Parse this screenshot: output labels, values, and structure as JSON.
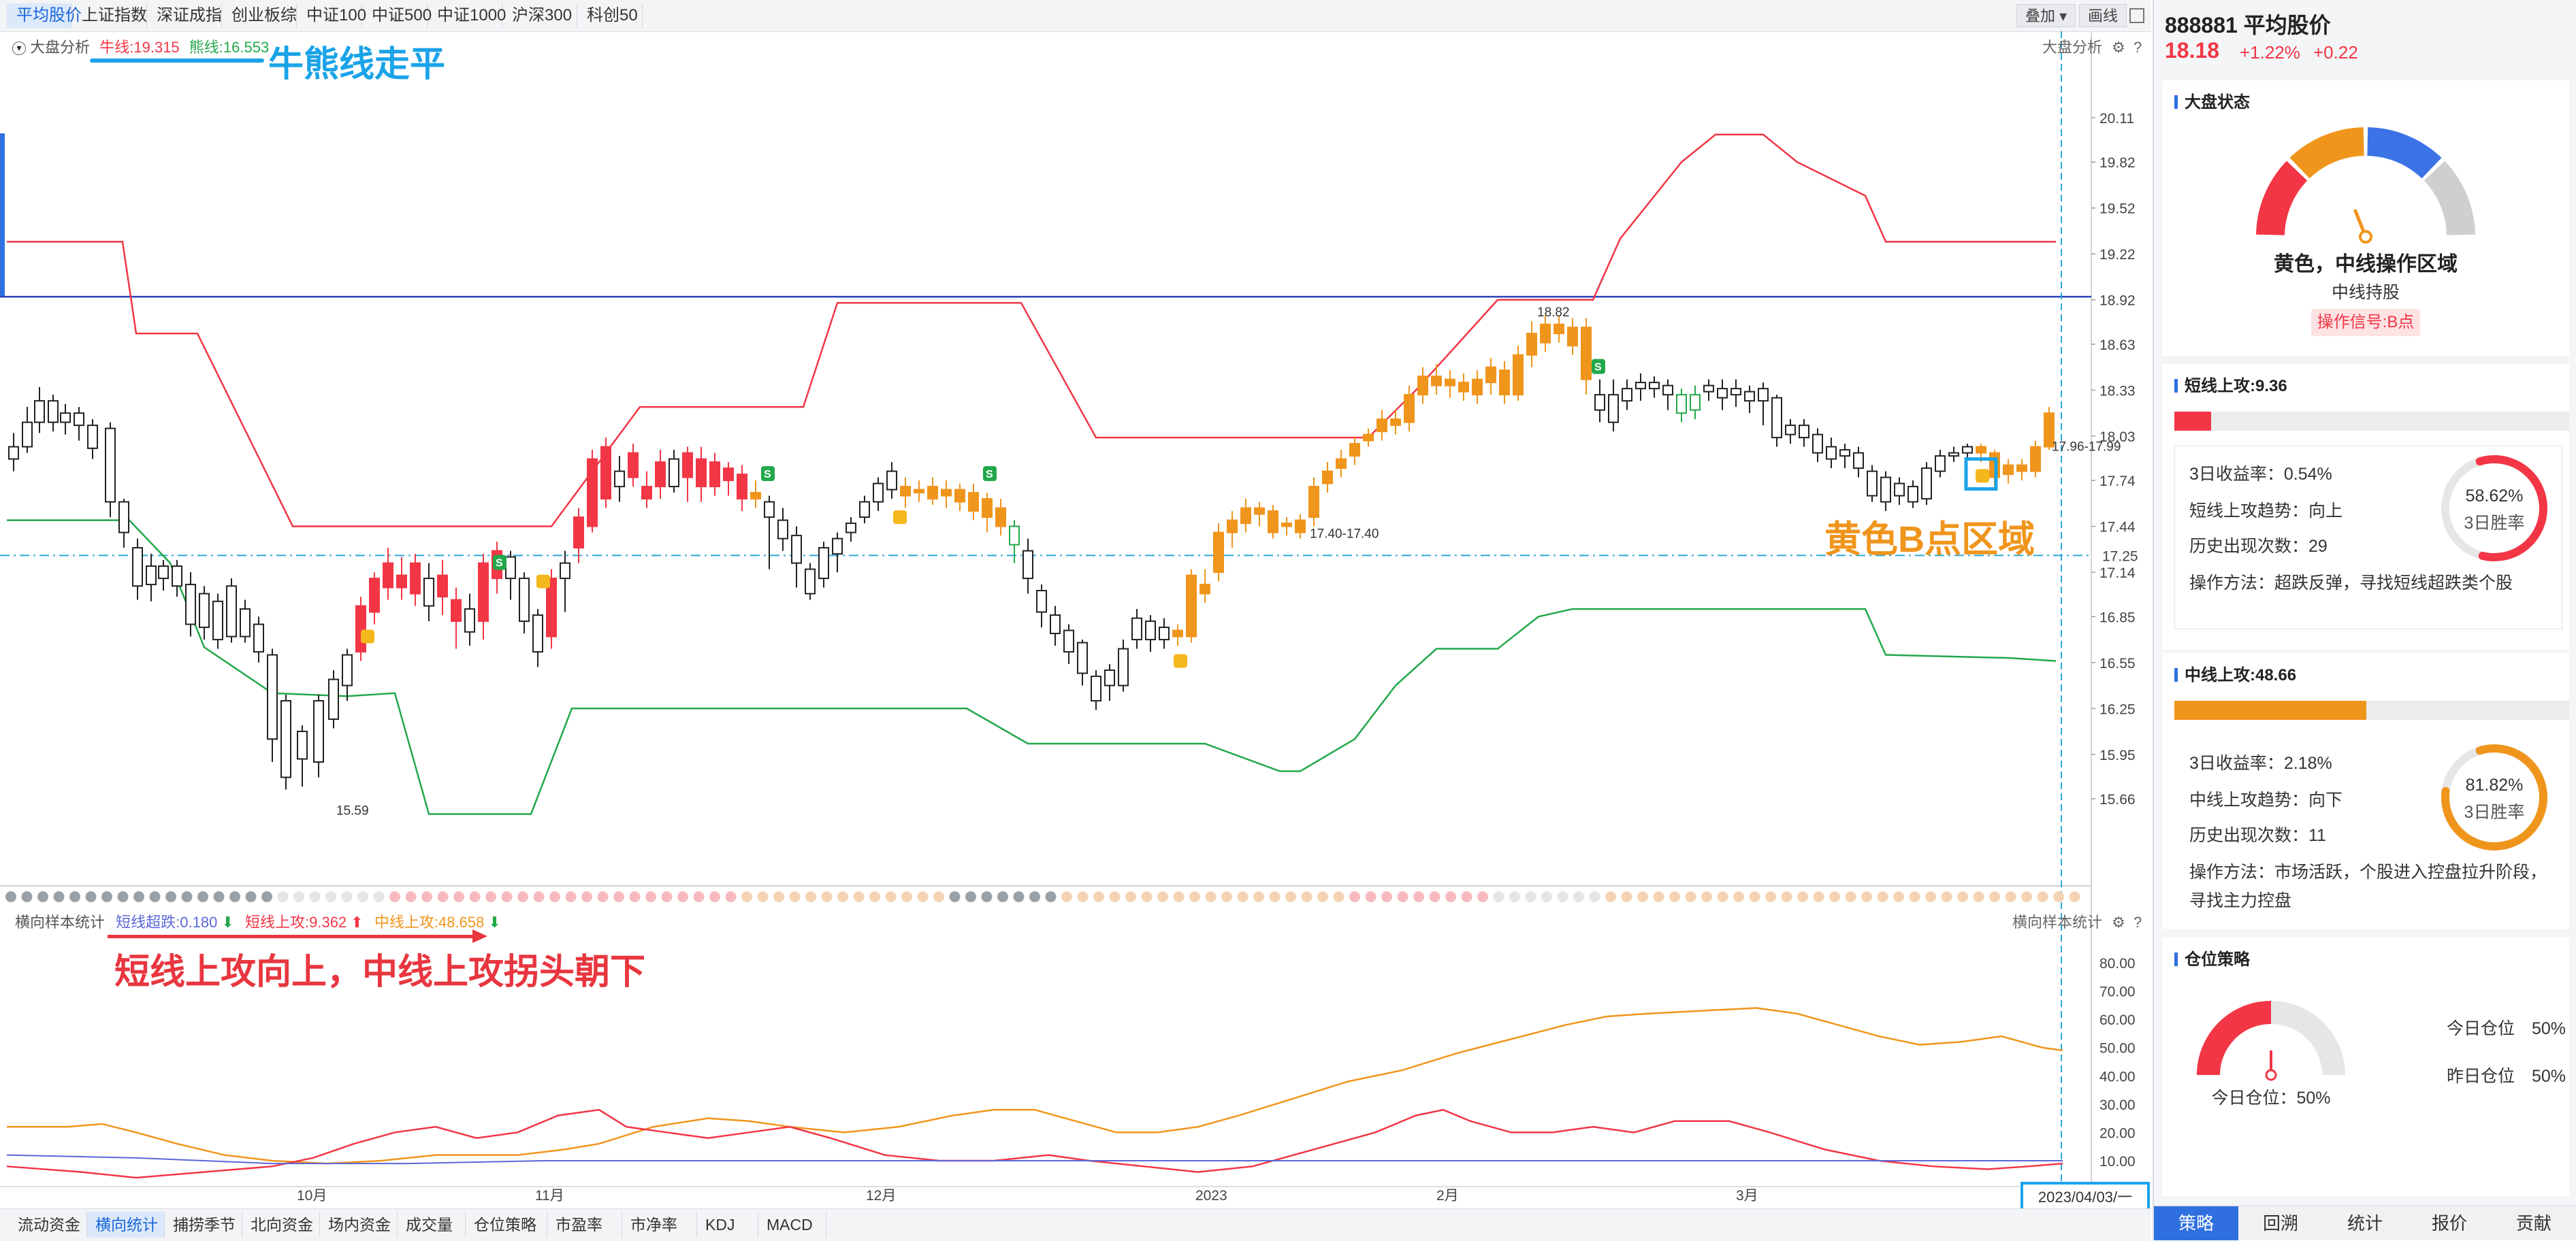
{
  "top_tabs": [
    "平均股价",
    "上证指数",
    "深证成指",
    "创业板综",
    "中证100",
    "中证500",
    "中证1000",
    "沪深300",
    "科创50"
  ],
  "top_tools": {
    "overlay": "叠加",
    "draw": "画线"
  },
  "main_chart": {
    "label": "大盘分析",
    "label_right": "大盘分析",
    "bull_label": "牛线:19.315",
    "bear_label": "熊线:16.553",
    "annotation_flat": "牛熊线走平",
    "annotation_b": "黄色B点区域",
    "price_marks": {
      "high": "18.82",
      "low": "15.59",
      "mid": "17.40-17.40",
      "right": "17.96-17.99"
    },
    "current_price_tag": "17.25",
    "y_ticks": [
      "20.11",
      "19.82",
      "19.52",
      "19.22",
      "18.92",
      "18.63",
      "18.33",
      "18.03",
      "17.74",
      "17.44",
      "17.14",
      "16.85",
      "16.55",
      "16.25",
      "15.95",
      "15.66"
    ],
    "colors": {
      "up": "#f23645",
      "down": "#ffffff",
      "yellow_up": "#f0951c",
      "green": "#22a84a",
      "blue": "#2a3fb8",
      "red": "#f23645"
    }
  },
  "sub_chart": {
    "label": "横向样本统计",
    "label_right": "横向样本统计",
    "short_drop": "短线超跌:0.180",
    "short_attack": "短线上攻:9.362",
    "mid_attack": "中线上攻:48.658",
    "annotation": "短线上攻向上，中线上攻拐头朝下",
    "y_ticks": [
      "80.00",
      "70.00",
      "60.00",
      "50.00",
      "40.00",
      "30.00",
      "20.00",
      "10.00"
    ]
  },
  "x_axis": {
    "labels": [
      "10月",
      "11月",
      "12月",
      "2023",
      "2月",
      "3月"
    ],
    "date_tag": "2023/04/03/一"
  },
  "bottom_tabs": [
    "流动资金",
    "横向统计",
    "捕捞季节",
    "北向资金",
    "场内资金",
    "成交量",
    "仓位策略",
    "市盈率",
    "市净率",
    "KDJ",
    "MACD"
  ],
  "panel": {
    "code_name": "888881 平均股价",
    "price": "18.18",
    "change_pct": "+1.22%",
    "change": "+0.22",
    "market_state": {
      "title": "大盘状态",
      "status": "黄色，中线操作区域",
      "hold": "中线持股",
      "signal": "操作信号:B点"
    },
    "short_attack": {
      "title": "短线上攻:9.36",
      "bar_fraction": 0.0936,
      "return3": "3日收益率：0.54%",
      "trend": "短线上攻趋势：向上",
      "count": "历史出现次数：29",
      "method": "操作方法：超跌反弹，寻找短线超跌类个股",
      "win_rate": "58.62%",
      "win_rate_value": 58.62,
      "win_label": "3日胜率"
    },
    "mid_attack": {
      "title": "中线上攻:48.66",
      "bar_fraction": 0.4866,
      "return3": "3日收益率：2.18%",
      "trend": "中线上攻趋势：向下",
      "count": "历史出现次数：11",
      "method1": "操作方法：市场活跃，个股进入控盘拉升阶段，",
      "method2": "寻找主力控盘",
      "win_rate": "81.82%",
      "win_rate_value": 81.82,
      "win_label": "3日胜率"
    },
    "position": {
      "title": "仓位策略",
      "today_label": "今日仓位：50%",
      "today_right": "今日仓位　50%",
      "yesterday_right": "昨日仓位　50%",
      "position_value": 50
    },
    "tabs": [
      "策略",
      "回溯",
      "统计",
      "报价",
      "贡献"
    ]
  }
}
